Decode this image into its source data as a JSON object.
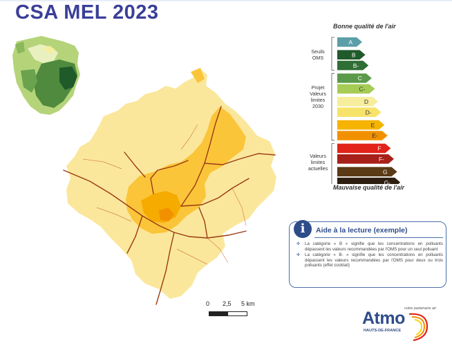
{
  "title": "CSA MEL 2023",
  "legend": {
    "top_label": "Bonne qualité de l'air",
    "bottom_label": "Mauvaise qualité de l'air",
    "groups": [
      {
        "lines": [
          "Seuils",
          "OMS"
        ]
      },
      {
        "lines": [
          "Projet",
          "Valeurs",
          "limites",
          "2030"
        ]
      },
      {
        "lines": [
          "Valeurs",
          "limites",
          "actuelles"
        ]
      }
    ],
    "classes": [
      {
        "label": "A",
        "color": "#5b9ea8"
      },
      {
        "label": "B",
        "color": "#1f5a2a"
      },
      {
        "label": "B-",
        "color": "#2f6e34"
      },
      {
        "label": "C",
        "color": "#5a9a4a"
      },
      {
        "label": "C-",
        "color": "#a6cc55"
      },
      {
        "label": "D",
        "color": "#f6ee9c"
      },
      {
        "label": "D-",
        "color": "#f8e36a"
      },
      {
        "label": "E",
        "color": "#f6b400"
      },
      {
        "label": "E-",
        "color": "#f29100"
      },
      {
        "label": "F",
        "color": "#e2231a"
      },
      {
        "label": "F-",
        "color": "#a8201a"
      },
      {
        "label": "G",
        "color": "#5b3a16"
      },
      {
        "label": "G-",
        "color": "#2e1e10"
      }
    ]
  },
  "aide": {
    "title": "Aide à la lecture (exemple)",
    "icon": "info-icon",
    "items": [
      "La catégorie « B » signifie que les concentrations en polluants dépassent les valeurs recommandées par l'OMS pour un seul polluant",
      "La catégorie « B- » signifie que les concentrations en polluants dépassent les valeurs recommandées par l'OMS pour deux ou trois polluants (effet cocktail)"
    ]
  },
  "scale": {
    "tick0": "0",
    "tick1": "2,5",
    "tick2": "5 km"
  },
  "logo": {
    "tagline": "votre partenaire air",
    "name": "Atmo",
    "subtitle": "HAUTS-DE-FRANCE"
  }
}
